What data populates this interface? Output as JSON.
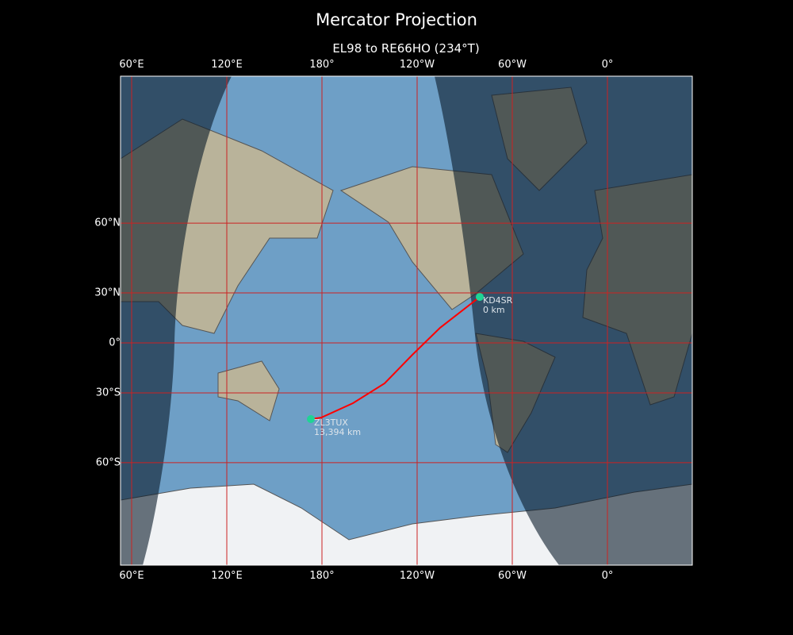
{
  "title": "Mercator Projection",
  "subtitle": "EL98 to RE66HO (234°T)",
  "map": {
    "projection": "Mercator",
    "lon_ticks": [
      {
        "lon": 60,
        "label": "60°E"
      },
      {
        "lon": 120,
        "label": "120°E"
      },
      {
        "lon": 180,
        "label": "180°"
      },
      {
        "lon": 240,
        "label": "120°W"
      },
      {
        "lon": 300,
        "label": "60°W"
      },
      {
        "lon": 360,
        "label": "0°"
      }
    ],
    "lat_ticks": [
      {
        "lat": 60,
        "label": "60°N"
      },
      {
        "lat": 30,
        "label": "30°N"
      },
      {
        "lat": 0,
        "label": "0°"
      },
      {
        "lat": -30,
        "label": "30°S"
      },
      {
        "lat": -60,
        "label": "60°S"
      }
    ],
    "gridline_color": "#cc2222",
    "path_color": "#ff0000",
    "marker_color": "#1fd494",
    "night_shading": true,
    "path": [
      [
        -80.5,
        27.8
      ],
      [
        -105.5,
        9.5
      ],
      [
        -123,
        -7.5
      ],
      [
        -140.5,
        -24.7
      ],
      [
        -160.5,
        -35.5
      ],
      [
        179.5,
        -42.5
      ],
      [
        173,
        -43.2
      ]
    ],
    "stations": [
      {
        "call": "KD4SR",
        "distance": "0 km",
        "lon": -80.5,
        "lat": 27.8
      },
      {
        "call": "ZL3TUX",
        "distance": "13,394 km",
        "lon": 173,
        "lat": -43.2
      }
    ]
  }
}
